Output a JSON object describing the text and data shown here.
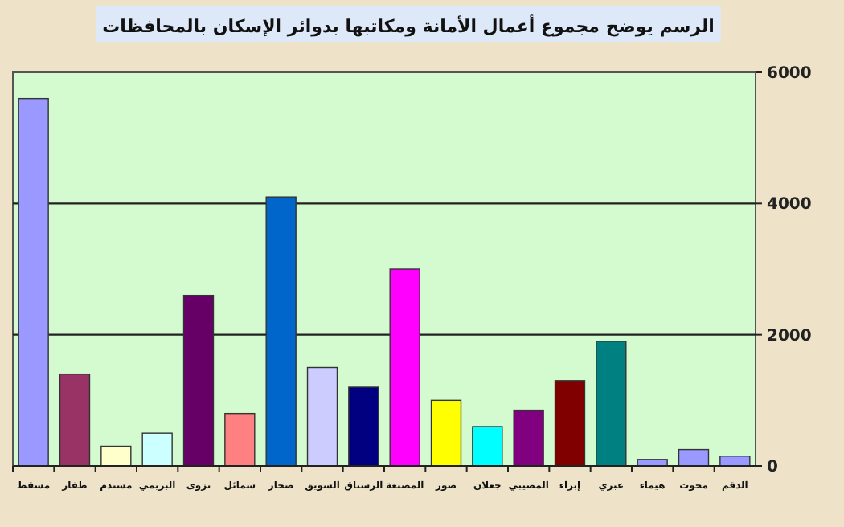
{
  "chart_data": {
    "type": "bar",
    "title": "الرسم يوضح مجموع أعمال الأمانة ومكاتبها بدوائر الإسكان بالمحافظات",
    "categories": [
      "مسقط",
      "ظفار",
      "مسندم",
      "البريمي",
      "نزوى",
      "سمائل",
      "صحار",
      "السويق",
      "الرستاق",
      "المصنعة",
      "صور",
      "جعلان",
      "المضيبي",
      "إبراء",
      "عبري",
      "هيماء",
      "محوت",
      "الدقم"
    ],
    "values": [
      5600,
      1400,
      300,
      500,
      2600,
      800,
      4100,
      1500,
      1200,
      3000,
      1000,
      600,
      850,
      1300,
      1900,
      100,
      250,
      150
    ],
    "colors": [
      "#9999ff",
      "#993366",
      "#ffffcc",
      "#ccffff",
      "#660066",
      "#ff8080",
      "#0066cc",
      "#ccccff",
      "#000080",
      "#ff00ff",
      "#ffff00",
      "#00ffff",
      "#800080",
      "#800000",
      "#008080",
      "#9999ff",
      "#9999ff",
      "#9999ff"
    ],
    "ylim": [
      0,
      6000
    ],
    "yticks": [
      0,
      2000,
      4000,
      6000
    ],
    "grid": "y"
  }
}
